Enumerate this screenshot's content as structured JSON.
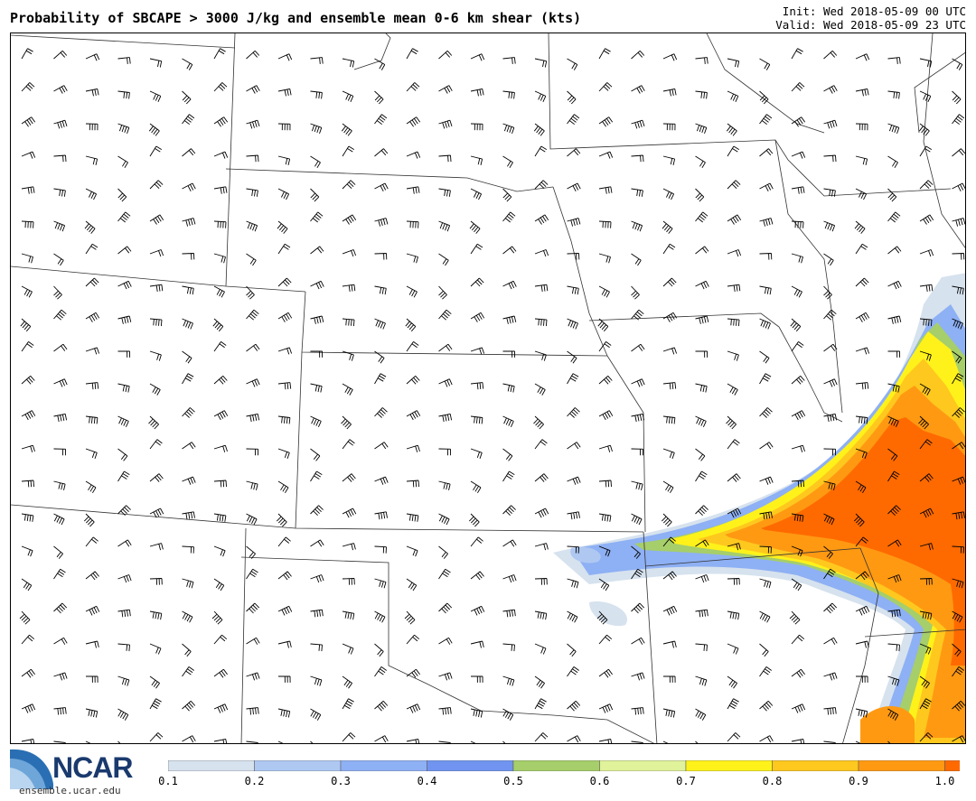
{
  "header": {
    "title": "Probability of SBCAPE > 3000 J/kg and ensemble mean 0-6 km shear (kts)",
    "init": "Init: Wed 2018-05-09 00 UTC",
    "valid": "Valid: Wed 2018-05-09 23 UTC"
  },
  "footer": {
    "logo_text": "NCAR",
    "url": "ensemble.ucar.edu"
  },
  "colorbar": {
    "labels": [
      "0.1",
      "0.2",
      "0.3",
      "0.4",
      "0.5",
      "0.6",
      "0.7",
      "0.8",
      "0.9",
      "1.0"
    ],
    "colors": [
      "#d6e2ee",
      "#aec8f2",
      "#8eb0f4",
      "#7094f0",
      "#a6ce6a",
      "#e0f29a",
      "#fff21a",
      "#ffc81e",
      "#ff9912",
      "#ff6a00"
    ]
  },
  "map": {
    "boundary_color": "#333333",
    "barb_color": "#000000"
  }
}
